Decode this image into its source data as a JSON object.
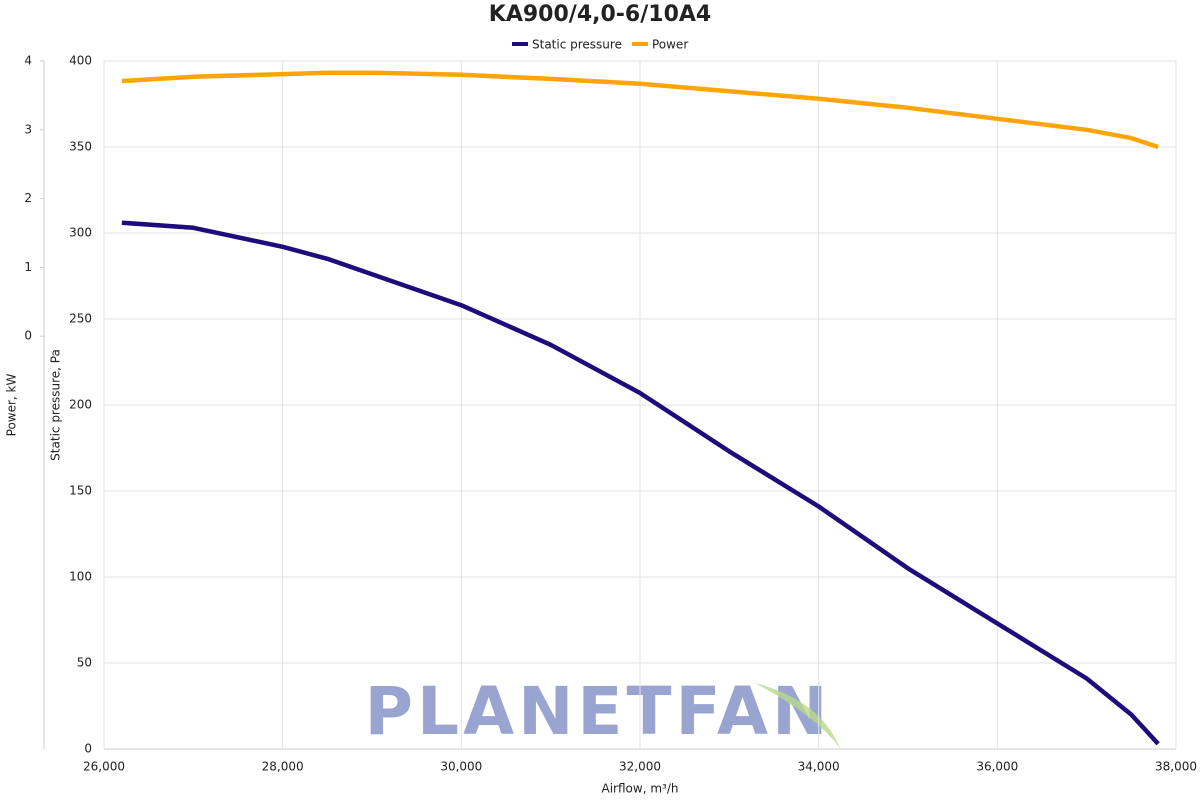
{
  "chart_data": {
    "type": "line",
    "title": "KA900/4,0-6/10A4",
    "xlabel": "Airflow, m³/h",
    "ylabel": "Static pressure, Pa",
    "y2label": "Power, kW",
    "watermark": "PLANETFAN",
    "x": [
      26200,
      27000,
      28000,
      28500,
      29000,
      30000,
      31000,
      32000,
      33000,
      34000,
      35000,
      36000,
      37000,
      37500,
      37800
    ],
    "series": [
      {
        "name": "Static pressure",
        "color": "#1e0b7c",
        "values": [
          306,
          303,
          292,
          285,
          276,
          258,
          235,
          207,
          173,
          141,
          105,
          73,
          41,
          20,
          3
        ]
      },
      {
        "name": "Power",
        "color": "#ffa50a",
        "axis": "y2",
        "values": [
          3.71,
          3.77,
          3.81,
          3.83,
          3.83,
          3.8,
          3.74,
          3.67,
          3.56,
          3.45,
          3.32,
          3.16,
          3.0,
          2.88,
          2.75
        ]
      }
    ],
    "xlim": [
      26000,
      38000
    ],
    "xticks": [
      {
        "value": 26000,
        "label": "26,000"
      },
      {
        "value": 28000,
        "label": "28,000"
      },
      {
        "value": 30000,
        "label": "30,000"
      },
      {
        "value": 32000,
        "label": "32,000"
      },
      {
        "value": 34000,
        "label": "34,000"
      },
      {
        "value": 36000,
        "label": "36,000"
      },
      {
        "value": 38000,
        "label": "38,000"
      }
    ],
    "ylim": [
      0,
      400
    ],
    "yticks": [
      0,
      50,
      100,
      150,
      200,
      250,
      300,
      350,
      400
    ],
    "y2lim": [
      -6,
      4
    ],
    "y2ticks": [
      0,
      1,
      2,
      3,
      4
    ],
    "grid": true,
    "legend": "top"
  }
}
